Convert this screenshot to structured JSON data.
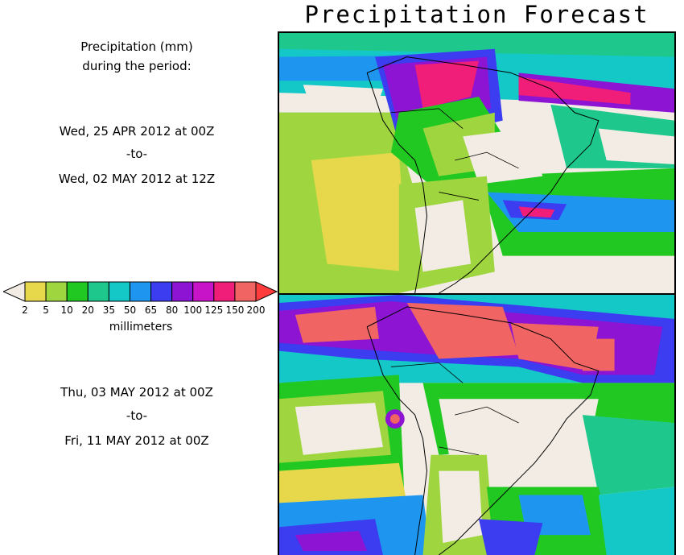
{
  "title": "Precipitation Forecast",
  "header": {
    "line1": "Precipitation (mm)",
    "line2": "during the period:"
  },
  "periods": [
    {
      "start": "Wed, 25 APR 2012 at 00Z",
      "sep": "-to-",
      "end": "Wed, 02 MAY 2012 at 12Z"
    },
    {
      "start": "Thu, 03 MAY 2012 at 00Z",
      "sep": "-to-",
      "end": "Fri, 11 MAY 2012 at 00Z"
    }
  ],
  "colorbar": {
    "unit": "millimeters",
    "labels": [
      "2",
      "5",
      "10",
      "20",
      "35",
      "50",
      "65",
      "80",
      "100",
      "125",
      "150",
      "200"
    ],
    "colors": [
      "#e6d84a",
      "#9fd640",
      "#22c822",
      "#1ec88c",
      "#14c8c8",
      "#1e96f0",
      "#3c3cf0",
      "#8c14d2",
      "#c814c8",
      "#f01e78",
      "#f06464"
    ],
    "low_arrow_color": "#f2ece4",
    "high_arrow_color": "#ff3c3c"
  },
  "map_colors": {
    "background": "#f2ece4",
    "coast": "#000000"
  }
}
